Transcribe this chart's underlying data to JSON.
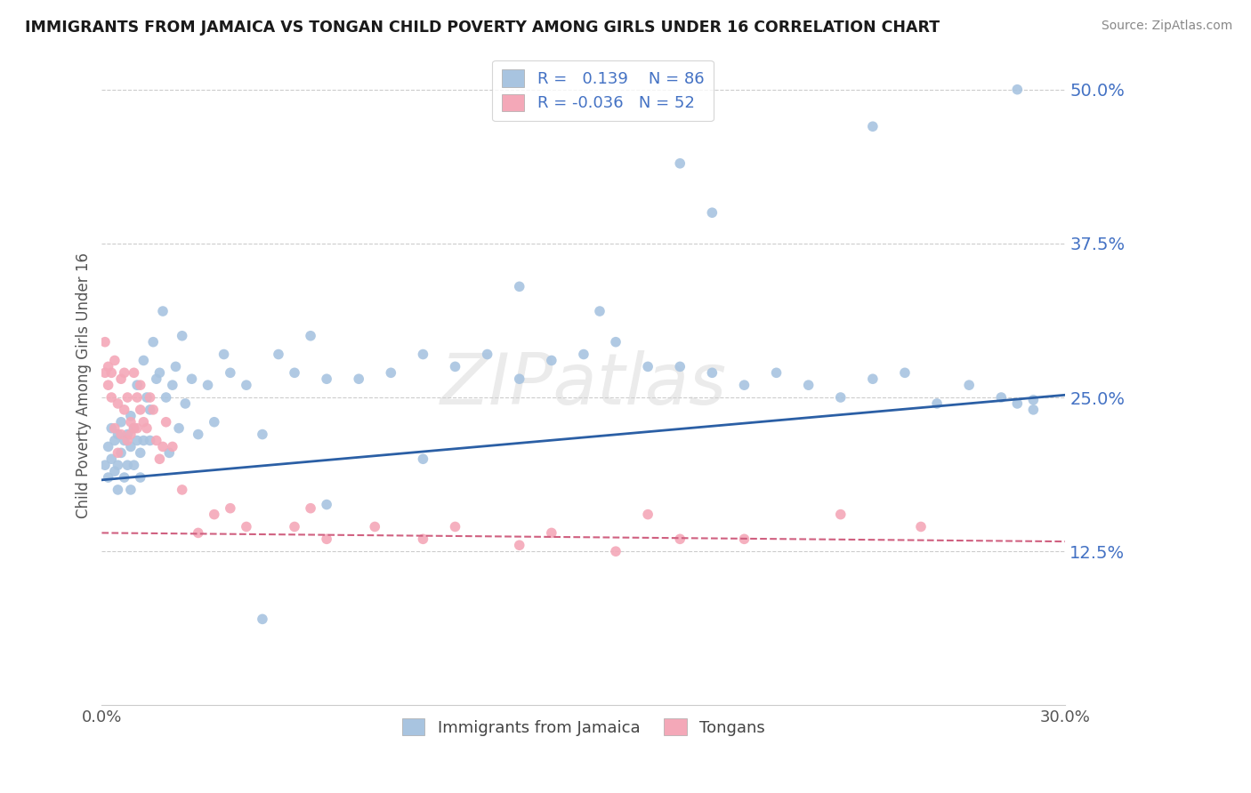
{
  "title": "IMMIGRANTS FROM JAMAICA VS TONGAN CHILD POVERTY AMONG GIRLS UNDER 16 CORRELATION CHART",
  "source": "Source: ZipAtlas.com",
  "ylabel": "Child Poverty Among Girls Under 16",
  "xlim": [
    0.0,
    0.3
  ],
  "ylim": [
    0.0,
    0.52
  ],
  "yticks": [
    0.0,
    0.125,
    0.25,
    0.375,
    0.5
  ],
  "ytick_labels": [
    "",
    "12.5%",
    "25.0%",
    "37.5%",
    "50.0%"
  ],
  "xticks": [
    0.0,
    0.3
  ],
  "xtick_labels": [
    "0.0%",
    "30.0%"
  ],
  "jamaica_R": 0.139,
  "jamaica_N": 86,
  "tongan_R": -0.036,
  "tongan_N": 52,
  "jamaica_color": "#a8c4e0",
  "tongan_color": "#f4a8b8",
  "jamaica_line_color": "#2b5fa5",
  "tongan_line_color": "#d06080",
  "background_color": "#ffffff",
  "grid_color": "#cccccc",
  "watermark": "ZIPatlas",
  "jamaica_trend_x": [
    0.0,
    0.3
  ],
  "jamaica_trend_y": [
    0.183,
    0.252
  ],
  "tongan_trend_x": [
    0.0,
    0.3
  ],
  "tongan_trend_y": [
    0.14,
    0.133
  ],
  "jamaica_x": [
    0.001,
    0.002,
    0.002,
    0.003,
    0.003,
    0.004,
    0.004,
    0.005,
    0.005,
    0.005,
    0.006,
    0.006,
    0.007,
    0.007,
    0.008,
    0.008,
    0.009,
    0.009,
    0.009,
    0.01,
    0.01,
    0.011,
    0.011,
    0.012,
    0.012,
    0.013,
    0.013,
    0.014,
    0.015,
    0.015,
    0.016,
    0.017,
    0.018,
    0.019,
    0.02,
    0.021,
    0.022,
    0.023,
    0.024,
    0.025,
    0.026,
    0.028,
    0.03,
    0.033,
    0.035,
    0.038,
    0.04,
    0.045,
    0.05,
    0.055,
    0.06,
    0.065,
    0.07,
    0.08,
    0.09,
    0.1,
    0.11,
    0.12,
    0.13,
    0.14,
    0.15,
    0.16,
    0.17,
    0.18,
    0.19,
    0.2,
    0.21,
    0.22,
    0.23,
    0.24,
    0.25,
    0.26,
    0.27,
    0.28,
    0.285,
    0.29,
    0.18,
    0.19,
    0.24,
    0.05,
    0.07,
    0.1,
    0.285,
    0.13,
    0.155,
    0.29
  ],
  "jamaica_y": [
    0.195,
    0.21,
    0.185,
    0.225,
    0.2,
    0.215,
    0.19,
    0.22,
    0.195,
    0.175,
    0.23,
    0.205,
    0.215,
    0.185,
    0.22,
    0.195,
    0.235,
    0.21,
    0.175,
    0.225,
    0.195,
    0.26,
    0.215,
    0.205,
    0.185,
    0.28,
    0.215,
    0.25,
    0.24,
    0.215,
    0.295,
    0.265,
    0.27,
    0.32,
    0.25,
    0.205,
    0.26,
    0.275,
    0.225,
    0.3,
    0.245,
    0.265,
    0.22,
    0.26,
    0.23,
    0.285,
    0.27,
    0.26,
    0.22,
    0.285,
    0.27,
    0.3,
    0.265,
    0.265,
    0.27,
    0.285,
    0.275,
    0.285,
    0.265,
    0.28,
    0.285,
    0.295,
    0.275,
    0.275,
    0.27,
    0.26,
    0.27,
    0.26,
    0.25,
    0.265,
    0.27,
    0.245,
    0.26,
    0.25,
    0.245,
    0.24,
    0.44,
    0.4,
    0.47,
    0.07,
    0.163,
    0.2,
    0.5,
    0.34,
    0.32,
    0.248
  ],
  "tongan_x": [
    0.001,
    0.001,
    0.002,
    0.002,
    0.003,
    0.003,
    0.004,
    0.004,
    0.005,
    0.005,
    0.006,
    0.006,
    0.007,
    0.007,
    0.008,
    0.008,
    0.009,
    0.009,
    0.01,
    0.01,
    0.011,
    0.011,
    0.012,
    0.012,
    0.013,
    0.014,
    0.015,
    0.016,
    0.017,
    0.018,
    0.019,
    0.02,
    0.022,
    0.025,
    0.03,
    0.035,
    0.04,
    0.045,
    0.06,
    0.065,
    0.07,
    0.085,
    0.1,
    0.11,
    0.13,
    0.14,
    0.16,
    0.17,
    0.18,
    0.2,
    0.23,
    0.255
  ],
  "tongan_y": [
    0.295,
    0.27,
    0.26,
    0.275,
    0.27,
    0.25,
    0.225,
    0.28,
    0.245,
    0.205,
    0.265,
    0.22,
    0.27,
    0.24,
    0.215,
    0.25,
    0.23,
    0.22,
    0.225,
    0.27,
    0.25,
    0.225,
    0.24,
    0.26,
    0.23,
    0.225,
    0.25,
    0.24,
    0.215,
    0.2,
    0.21,
    0.23,
    0.21,
    0.175,
    0.14,
    0.155,
    0.16,
    0.145,
    0.145,
    0.16,
    0.135,
    0.145,
    0.135,
    0.145,
    0.13,
    0.14,
    0.125,
    0.155,
    0.135,
    0.135,
    0.155,
    0.145
  ]
}
